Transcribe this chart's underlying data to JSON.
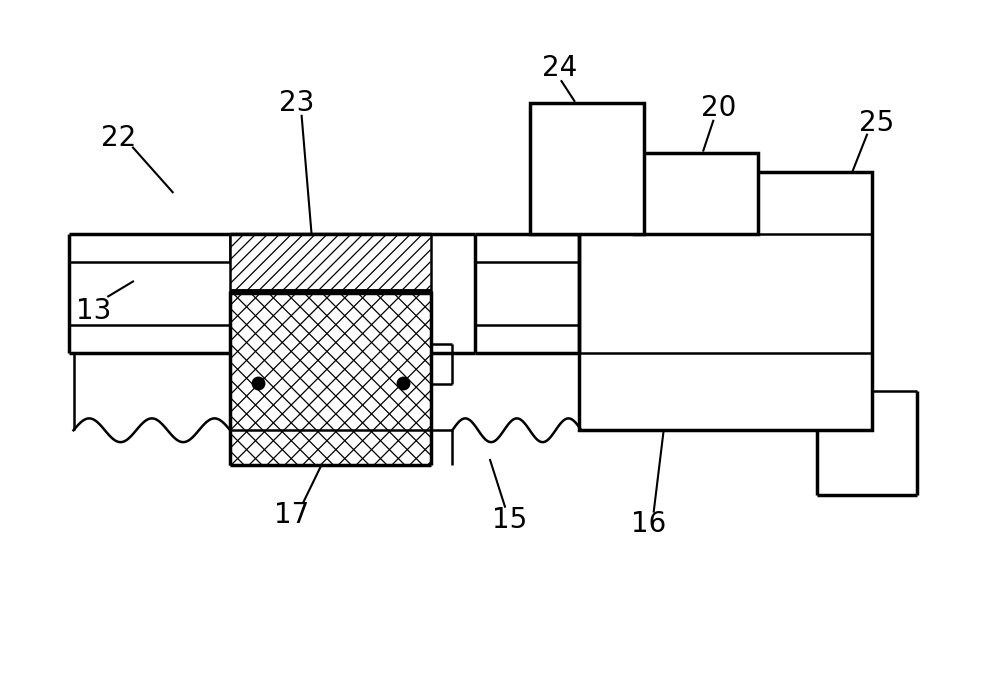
{
  "bg_color": "#ffffff",
  "lc": "#000000",
  "lw": 1.8,
  "tlw": 2.5,
  "fig_w": 10.0,
  "fig_h": 6.81,
  "dpi": 100,
  "fs": 20
}
